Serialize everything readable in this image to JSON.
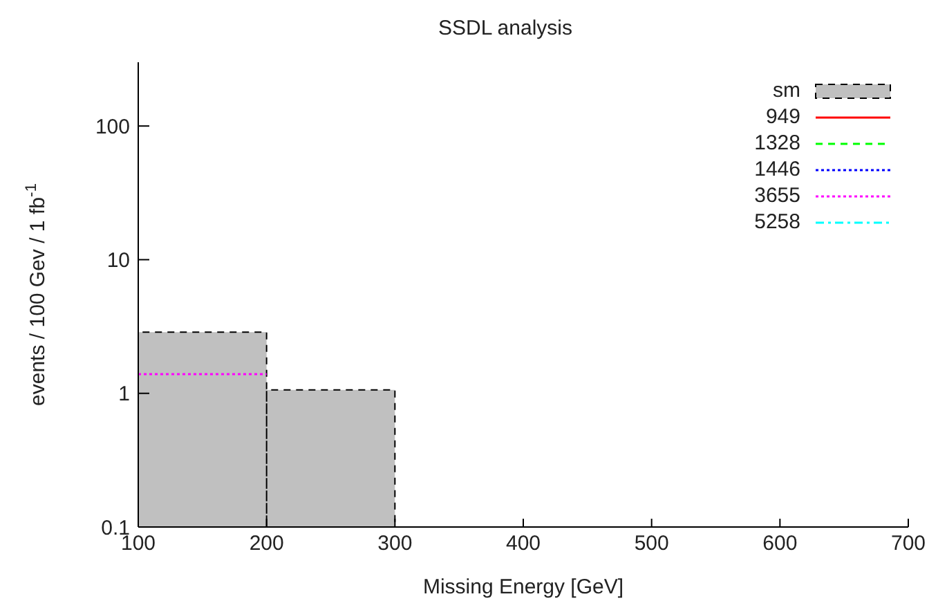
{
  "chart_data": {
    "type": "histogram",
    "title": "SSDL analysis",
    "xlabel": "Missing Energy [GeV]",
    "ylabel": "events / 100 Gev / 1 fb$^{-1}$",
    "bins": [
      100,
      200,
      300
    ],
    "log": "y",
    "xlim": [
      100,
      700
    ],
    "xticks": [
      100,
      200,
      300,
      400,
      500,
      600,
      700
    ],
    "ylim": [
      0.1,
      300
    ],
    "yticks": [
      0.1,
      1,
      10,
      100
    ],
    "legend": "top right",
    "series": [
      {
        "name": "sm",
        "color": "#c0c0c0",
        "values": [
          2.87,
          1.06
        ],
        "line_style": "dashed"
      },
      {
        "name": "949",
        "color": "#ff0000",
        "type": "line",
        "line_style": "solid"
      },
      {
        "name": "1328",
        "color": "#00ff00",
        "type": "line",
        "line_style": "dashed"
      },
      {
        "name": "1446",
        "color": "#0000ff",
        "type": "line",
        "line_style": "dotted"
      },
      {
        "name": "3655",
        "color": "#ff00ff",
        "x": [
          100,
          200
        ],
        "values": [
          1.39,
          1.39
        ],
        "type": "line",
        "line_style": "dotted"
      },
      {
        "name": "5258",
        "color": "#00ffff",
        "type": "line",
        "line_style": "dashdot"
      }
    ]
  }
}
